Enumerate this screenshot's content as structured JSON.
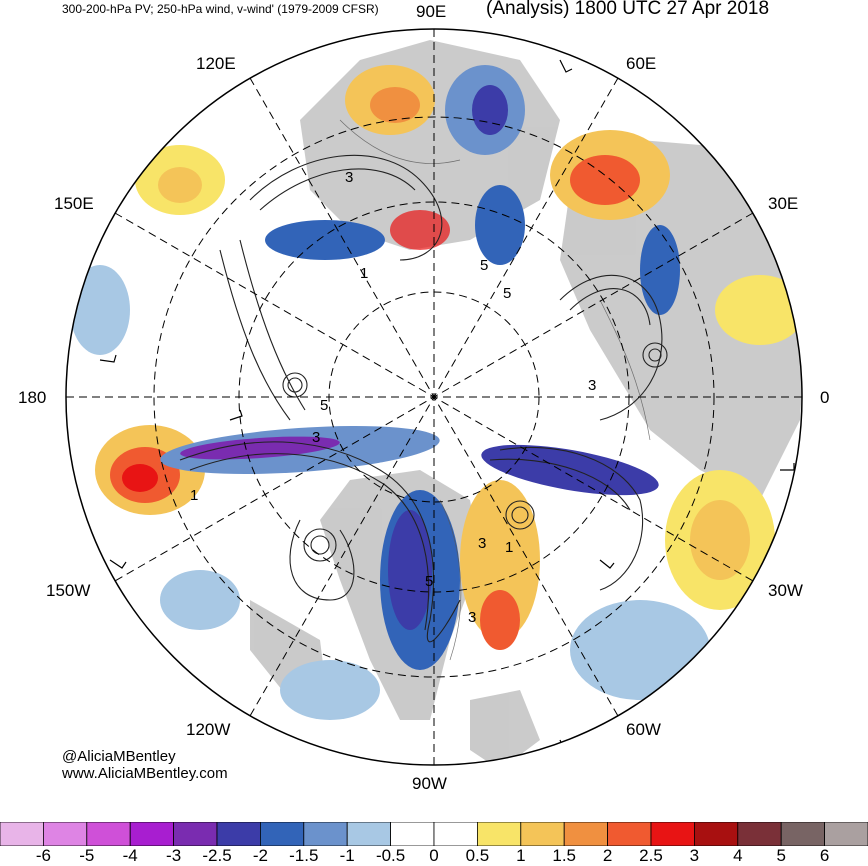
{
  "header": {
    "title_left": "300-200-hPa PV; 250-hPa wind, v-wind' (1979-2009 CFSR)",
    "title_right": "(Analysis) 1800 UTC 27 Apr 2018"
  },
  "longitude_labels": {
    "lon_90e": "90E",
    "lon_120e": "120E",
    "lon_60e": "60E",
    "lon_150e": "150E",
    "lon_30e": "30E",
    "lon_180": "180",
    "lon_0": "0",
    "lon_150w": "150W",
    "lon_30w": "30W",
    "lon_120w": "120W",
    "lon_60w": "60W",
    "lon_90w": "90W"
  },
  "contour_labels": [
    "3",
    "5",
    "5",
    "3",
    "1",
    "3",
    "5",
    "3",
    "1",
    "5",
    "3",
    "1"
  ],
  "credits": {
    "handle": "@AliciaMBentley",
    "website": "www.AliciaMBentley.com"
  },
  "colorbar": {
    "labels": [
      "-6",
      "-5",
      "-4",
      "-3",
      "-2.5",
      "-2",
      "-1.5",
      "-1",
      "-0.5",
      "0",
      "0.5",
      "1",
      "1.5",
      "2",
      "2.5",
      "3",
      "4",
      "5",
      "6"
    ],
    "colors": [
      "#e8b4e8",
      "#de84e4",
      "#cf50d8",
      "#a81ed0",
      "#7a2cb0",
      "#3c3ca8",
      "#3264b8",
      "#6b92cc",
      "#a8c8e4",
      "#ffffff",
      "#ffffff",
      "#f8e468",
      "#f4c458",
      "#f09040",
      "#f05a30",
      "#e81414",
      "#a81010",
      "#7a3038",
      "#786464",
      "#aaa0a0"
    ]
  }
}
